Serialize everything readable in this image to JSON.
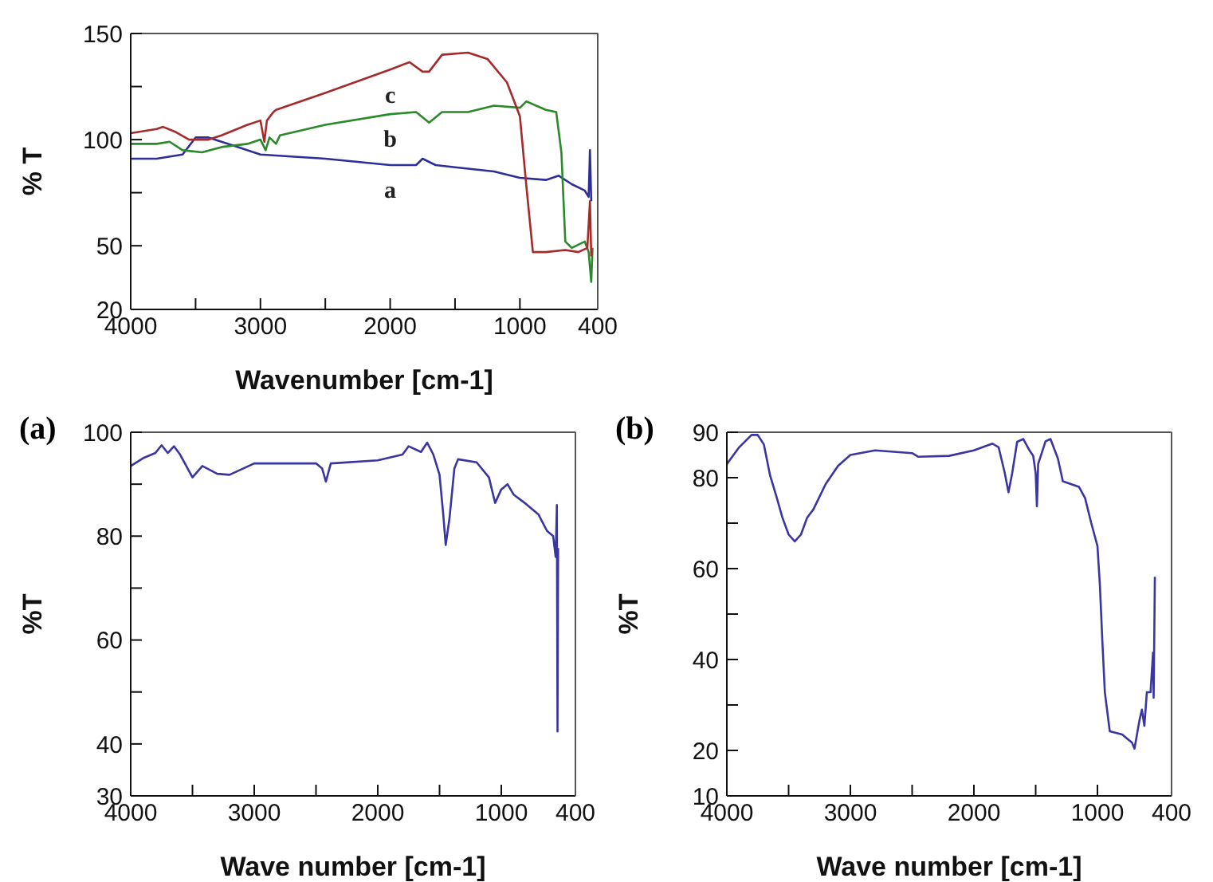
{
  "chart_data": [
    {
      "type": "line",
      "xlabel": "Wavenumber [cm-1]",
      "ylabel": "% T",
      "xlim": [
        4000,
        400
      ],
      "ylim": [
        20,
        150
      ],
      "xticks": [
        4000,
        {
          "value": 3500,
          "label": null
        },
        3000,
        {
          "value": 2500,
          "label": null
        },
        2000,
        {
          "value": 1500,
          "label": null
        },
        1000,
        400
      ],
      "yticks": [
        20,
        50,
        {
          "value": 75,
          "label": null
        },
        100,
        {
          "value": 125,
          "label": null
        },
        150
      ],
      "legend": false,
      "marker": "none",
      "line_style": "solid",
      "series": [
        {
          "name": "a",
          "color": "#2e2e9a",
          "x": [
            4000,
            3800,
            3600,
            3500,
            3400,
            3200,
            3000,
            2500,
            2000,
            1800,
            1750,
            1650,
            1500,
            1200,
            1000,
            800,
            700,
            600,
            500,
            470,
            460,
            450
          ],
          "values": [
            91,
            91,
            93,
            101,
            101,
            97,
            93,
            91,
            88,
            88,
            91,
            88,
            87,
            85,
            82,
            81,
            83,
            79,
            76,
            73,
            95,
            71
          ]
        },
        {
          "name": "b",
          "color": "#2a8a2a",
          "x": [
            4000,
            3800,
            3700,
            3600,
            3450,
            3300,
            3100,
            3000,
            2960,
            2930,
            2880,
            2850,
            2500,
            2000,
            1800,
            1700,
            1600,
            1400,
            1200,
            1000,
            950,
            800,
            720,
            680,
            650,
            600,
            500,
            470,
            450,
            440
          ],
          "values": [
            98,
            98,
            99,
            95,
            94,
            96.5,
            98,
            100,
            95,
            101,
            98,
            102,
            107,
            112,
            113,
            108,
            113,
            113,
            116,
            115,
            118,
            114,
            113,
            94,
            52,
            49,
            52,
            47,
            33,
            49
          ]
        },
        {
          "name": "c",
          "color": "#a52a2a",
          "x": [
            4000,
            3800,
            3750,
            3650,
            3550,
            3400,
            3300,
            3100,
            3000,
            2970,
            2950,
            2900,
            2880,
            2500,
            2000,
            1850,
            1750,
            1700,
            1600,
            1400,
            1250,
            1100,
            1000,
            950,
            900,
            800,
            650,
            550,
            480,
            460,
            450
          ],
          "values": [
            103,
            105,
            106,
            103.5,
            100,
            100,
            102,
            107,
            109,
            99,
            109,
            113,
            114,
            122,
            133,
            136.5,
            132,
            132,
            140,
            141,
            138,
            127,
            111,
            78,
            47,
            47,
            48,
            47,
            49,
            71,
            45
          ]
        }
      ]
    },
    {
      "type": "line",
      "title": "(a)",
      "xlabel": "Wave number [cm-1]",
      "ylabel": "%T",
      "xlim": [
        4000,
        400
      ],
      "ylim": [
        30,
        100
      ],
      "xticks": [
        4000,
        {
          "value": 3500,
          "label": null
        },
        3000,
        {
          "value": 2500,
          "label": null
        },
        2000,
        {
          "value": 1500,
          "label": null
        },
        1000,
        400
      ],
      "yticks": [
        30,
        40,
        {
          "value": 50,
          "label": null
        },
        60,
        {
          "value": 70,
          "label": null
        },
        80,
        {
          "value": 90,
          "label": null
        },
        100
      ],
      "legend": false,
      "marker": "none",
      "line_style": "solid",
      "series": [
        {
          "color": "#3a35a0",
          "x": [
            4000,
            3900,
            3800,
            3750,
            3700,
            3650,
            3600,
            3550,
            3500,
            3420,
            3300,
            3200,
            3000,
            2500,
            2450,
            2420,
            2380,
            2000,
            1800,
            1750,
            1650,
            1600,
            1550,
            1500,
            1470,
            1450,
            1420,
            1380,
            1350,
            1200,
            1100,
            1050,
            1000,
            950,
            900,
            800,
            700,
            630,
            580,
            560,
            550,
            545,
            540
          ],
          "values": [
            93.5,
            95,
            96,
            97.5,
            96,
            97.3,
            95.7,
            93.5,
            91.3,
            93.5,
            92,
            91.8,
            94,
            94,
            93,
            90.5,
            94,
            94.6,
            95.7,
            97.3,
            96.2,
            98,
            95.7,
            91.8,
            84.2,
            78.3,
            83.3,
            93,
            94.8,
            94.2,
            91.3,
            86.4,
            89,
            90,
            88,
            86.2,
            84.2,
            81,
            80,
            76,
            86,
            42.4,
            77.7
          ]
        }
      ]
    },
    {
      "type": "line",
      "title": "(b)",
      "xlabel": "Wave number [cm-1]",
      "ylabel": "%T",
      "xlim": [
        4000,
        400
      ],
      "ylim": [
        10,
        90
      ],
      "xticks": [
        4000,
        {
          "value": 3500,
          "label": null
        },
        3000,
        {
          "value": 2500,
          "label": null
        },
        2000,
        {
          "value": 1500,
          "label": null
        },
        1000,
        400
      ],
      "yticks": [
        10,
        20,
        {
          "value": 30,
          "label": null
        },
        40,
        {
          "value": 50,
          "label": null
        },
        60,
        {
          "value": 70,
          "label": null
        },
        80,
        90
      ],
      "legend": false,
      "marker": "none",
      "line_style": "solid",
      "series": [
        {
          "color": "#3a35a0",
          "x": [
            4000,
            3900,
            3800,
            3750,
            3700,
            3650,
            3600,
            3550,
            3500,
            3450,
            3400,
            3350,
            3300,
            3200,
            3100,
            3000,
            2800,
            2500,
            2450,
            2200,
            2000,
            1850,
            1800,
            1750,
            1720,
            1690,
            1650,
            1600,
            1550,
            1520,
            1500,
            1490,
            1480,
            1420,
            1380,
            1320,
            1280,
            1150,
            1100,
            1050,
            1000,
            980,
            960,
            940,
            900,
            800,
            720,
            700,
            660,
            640,
            620,
            600,
            570,
            550,
            545,
            535
          ],
          "values": [
            83,
            86.7,
            89.4,
            89.4,
            87.3,
            80.5,
            76,
            71.2,
            67.5,
            66,
            67.5,
            71.2,
            73,
            78.6,
            82.6,
            85,
            86,
            85.4,
            84.6,
            84.8,
            86,
            87.5,
            86.7,
            81,
            76.8,
            81,
            87.9,
            88.5,
            86,
            84.8,
            81,
            73.7,
            83,
            88,
            88.5,
            84.2,
            79.2,
            78,
            75.5,
            70,
            65,
            56.3,
            43.9,
            32.8,
            24.2,
            23.5,
            21.7,
            20.4,
            26.6,
            29,
            25.4,
            32.8,
            32.8,
            41.5,
            31.6,
            58.2
          ]
        }
      ]
    }
  ]
}
